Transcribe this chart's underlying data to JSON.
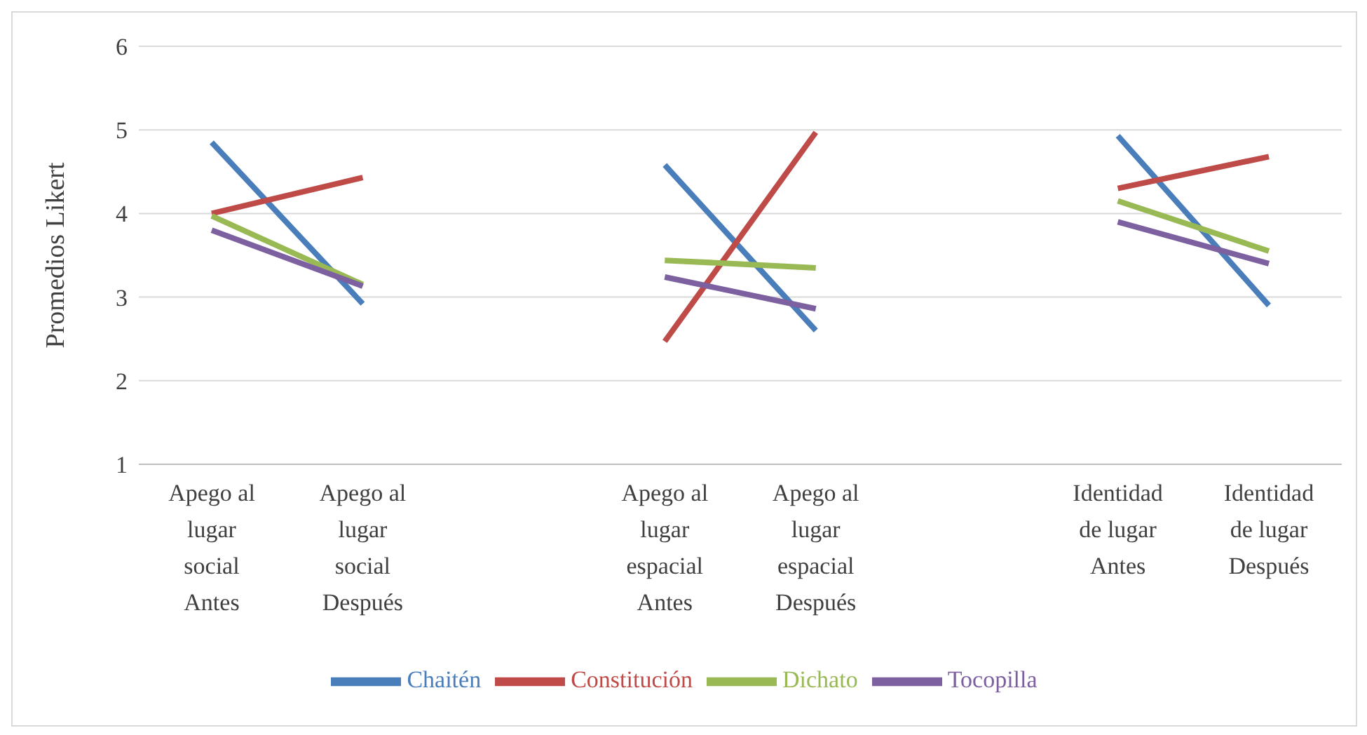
{
  "chart_data": {
    "type": "line",
    "ylabel": "Promedios Likert",
    "categories": [
      "Apego al lugar social Antes",
      "Apego al lugar social Después",
      null,
      "Apego al lugar espacial Antes",
      "Apego al lugar espacial Después",
      null,
      "Identidad de lugar Antes",
      "Identidad de lugar Después"
    ],
    "series": [
      {
        "name": "Chaitén",
        "color": "#4a7ebb",
        "values": [
          4.85,
          2.92,
          null,
          4.58,
          2.6,
          null,
          4.93,
          2.9
        ]
      },
      {
        "name": "Constitución",
        "color": "#be4b48",
        "values": [
          4.0,
          4.43,
          null,
          2.47,
          4.97,
          null,
          4.3,
          4.68
        ]
      },
      {
        "name": "Dichato",
        "color": "#98b954",
        "values": [
          3.97,
          3.15,
          null,
          3.44,
          3.35,
          null,
          4.15,
          3.55
        ]
      },
      {
        "name": "Tocopilla",
        "color": "#7d60a0",
        "values": [
          3.8,
          3.13,
          null,
          3.24,
          2.86,
          null,
          3.9,
          3.4
        ]
      }
    ],
    "ylim": [
      1,
      6
    ],
    "yticks": [
      1,
      2,
      3,
      4,
      5,
      6
    ],
    "grid": "y",
    "legend": "bottom",
    "marker": "none",
    "line_style": "solid"
  }
}
